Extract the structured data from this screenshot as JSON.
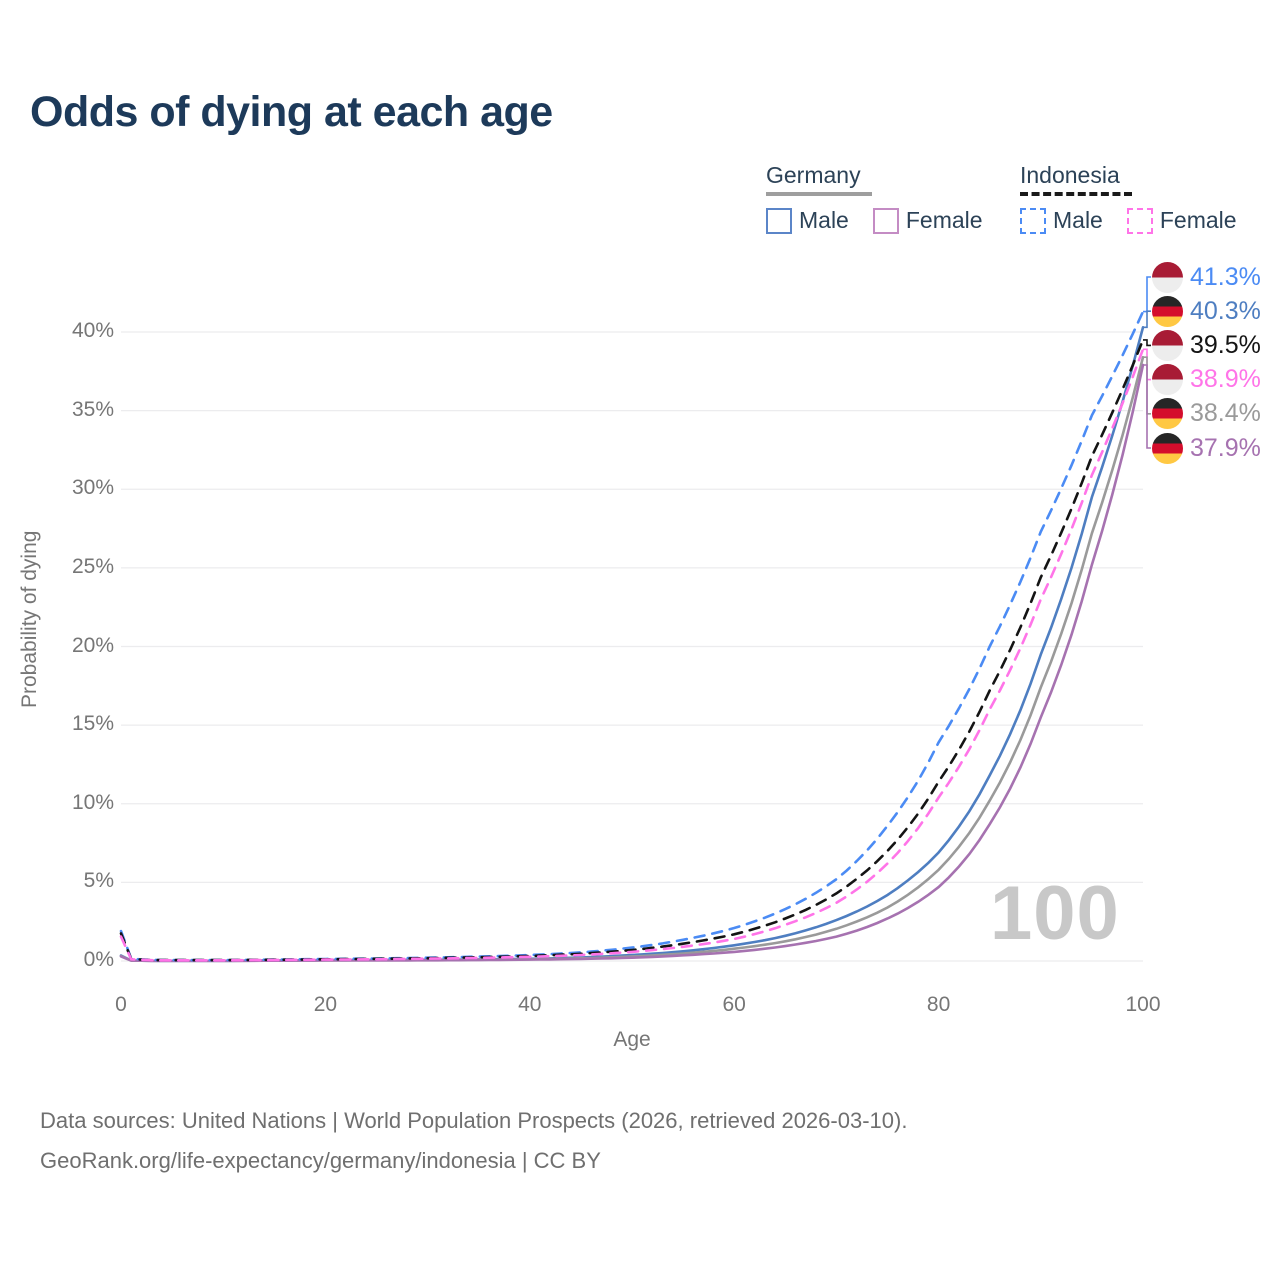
{
  "title": "Odds of dying at each age",
  "legend": {
    "groups": [
      {
        "label": "Germany",
        "line_style": "solid",
        "underline_color": "#9e9e9e",
        "items": [
          {
            "label": "Male",
            "color": "#5b85c8"
          },
          {
            "label": "Female",
            "color": "#c48cc4"
          }
        ]
      },
      {
        "label": "Indonesia",
        "line_style": "dashed",
        "underline_color": "#1a1a1a",
        "items": [
          {
            "label": "Male",
            "color": "#4b8bf4"
          },
          {
            "label": "Female",
            "color": "#ff74e8"
          }
        ]
      }
    ]
  },
  "chart_data": {
    "type": "line",
    "title": "Odds of dying at each age",
    "xlabel": "Age",
    "ylabel": "Probability of dying",
    "x_ticks": [
      0,
      20,
      40,
      60,
      80,
      100
    ],
    "y_ticks": [
      {
        "value": 0,
        "label": "0%"
      },
      {
        "value": 5,
        "label": "5%"
      },
      {
        "value": 10,
        "label": "10%"
      },
      {
        "value": 15,
        "label": "15%"
      },
      {
        "value": 20,
        "label": "20%"
      },
      {
        "value": 25,
        "label": "25%"
      },
      {
        "value": 30,
        "label": "30%"
      },
      {
        "value": 35,
        "label": "35%"
      },
      {
        "value": 40,
        "label": "40%"
      }
    ],
    "xlim": [
      0,
      100
    ],
    "ylim_percent": [
      0,
      43
    ],
    "grid": "horizontal",
    "legend_position": "top-right",
    "watermark": "100",
    "flag_colors": {
      "Germany": [
        "#262626",
        "#d40d2c",
        "#ffc843"
      ],
      "Indonesia": [
        "#a81c35",
        "#ededed"
      ]
    },
    "series": [
      {
        "id": "indonesia-male",
        "country": "Indonesia",
        "sex": "Male",
        "color": "#4b8bf4",
        "dashed": true,
        "end_label": "41.3%",
        "points": [
          [
            0,
            1.9
          ],
          [
            1,
            0.15
          ],
          [
            3,
            0.07
          ],
          [
            5,
            0.06
          ],
          [
            10,
            0.06
          ],
          [
            15,
            0.09
          ],
          [
            20,
            0.13
          ],
          [
            25,
            0.16
          ],
          [
            30,
            0.21
          ],
          [
            35,
            0.28
          ],
          [
            40,
            0.38
          ],
          [
            45,
            0.55
          ],
          [
            50,
            0.85
          ],
          [
            55,
            1.35
          ],
          [
            60,
            2.1
          ],
          [
            65,
            3.3
          ],
          [
            70,
            5.2
          ],
          [
            75,
            8.6
          ],
          [
            80,
            13.9
          ],
          [
            85,
            20.0
          ],
          [
            90,
            27.3
          ],
          [
            95,
            34.7
          ],
          [
            100,
            41.3
          ]
        ]
      },
      {
        "id": "germany-male",
        "country": "Germany",
        "sex": "Male",
        "color": "#4e7ec1",
        "dashed": false,
        "end_label": "40.3%",
        "points": [
          [
            0,
            0.35
          ],
          [
            1,
            0.03
          ],
          [
            3,
            0.015
          ],
          [
            5,
            0.012
          ],
          [
            10,
            0.012
          ],
          [
            15,
            0.03
          ],
          [
            20,
            0.06
          ],
          [
            25,
            0.065
          ],
          [
            30,
            0.08
          ],
          [
            35,
            0.1
          ],
          [
            40,
            0.14
          ],
          [
            45,
            0.22
          ],
          [
            50,
            0.38
          ],
          [
            55,
            0.62
          ],
          [
            60,
            1.0
          ],
          [
            65,
            1.6
          ],
          [
            70,
            2.6
          ],
          [
            75,
            4.2
          ],
          [
            80,
            6.9
          ],
          [
            85,
            11.8
          ],
          [
            90,
            19.5
          ],
          [
            95,
            29.5
          ],
          [
            100,
            40.3
          ]
        ]
      },
      {
        "id": "indonesia-all",
        "country": "Indonesia",
        "sex": "",
        "color": "#141414",
        "dashed": true,
        "end_label": "39.5%",
        "points": [
          [
            0,
            1.75
          ],
          [
            1,
            0.13
          ],
          [
            3,
            0.06
          ],
          [
            5,
            0.055
          ],
          [
            10,
            0.055
          ],
          [
            15,
            0.08
          ],
          [
            20,
            0.11
          ],
          [
            25,
            0.14
          ],
          [
            30,
            0.18
          ],
          [
            35,
            0.24
          ],
          [
            40,
            0.32
          ],
          [
            45,
            0.46
          ],
          [
            50,
            0.7
          ],
          [
            55,
            1.1
          ],
          [
            60,
            1.7
          ],
          [
            65,
            2.7
          ],
          [
            70,
            4.3
          ],
          [
            75,
            7.0
          ],
          [
            80,
            11.4
          ],
          [
            85,
            17.2
          ],
          [
            90,
            24.4
          ],
          [
            95,
            32.1
          ],
          [
            100,
            39.5
          ]
        ]
      },
      {
        "id": "indonesia-female",
        "country": "Indonesia",
        "sex": "Female",
        "color": "#ff74e8",
        "dashed": true,
        "end_label": "38.9%",
        "points": [
          [
            0,
            1.55
          ],
          [
            1,
            0.11
          ],
          [
            3,
            0.05
          ],
          [
            5,
            0.045
          ],
          [
            10,
            0.045
          ],
          [
            15,
            0.065
          ],
          [
            20,
            0.09
          ],
          [
            25,
            0.11
          ],
          [
            30,
            0.15
          ],
          [
            35,
            0.2
          ],
          [
            40,
            0.27
          ],
          [
            45,
            0.38
          ],
          [
            50,
            0.58
          ],
          [
            55,
            0.9
          ],
          [
            60,
            1.4
          ],
          [
            65,
            2.3
          ],
          [
            70,
            3.7
          ],
          [
            75,
            6.2
          ],
          [
            80,
            10.4
          ],
          [
            85,
            16.0
          ],
          [
            90,
            23.0
          ],
          [
            95,
            30.9
          ],
          [
            100,
            38.9
          ]
        ]
      },
      {
        "id": "germany-all",
        "country": "Germany",
        "sex": "",
        "color": "#9a9a9a",
        "dashed": false,
        "end_label": "38.4%",
        "points": [
          [
            0,
            0.32
          ],
          [
            1,
            0.027
          ],
          [
            3,
            0.013
          ],
          [
            5,
            0.011
          ],
          [
            10,
            0.011
          ],
          [
            15,
            0.025
          ],
          [
            20,
            0.045
          ],
          [
            25,
            0.05
          ],
          [
            30,
            0.06
          ],
          [
            35,
            0.08
          ],
          [
            40,
            0.11
          ],
          [
            45,
            0.17
          ],
          [
            50,
            0.29
          ],
          [
            55,
            0.48
          ],
          [
            60,
            0.78
          ],
          [
            65,
            1.25
          ],
          [
            70,
            2.05
          ],
          [
            75,
            3.4
          ],
          [
            80,
            5.8
          ],
          [
            85,
            10.2
          ],
          [
            90,
            17.4
          ],
          [
            95,
            27.2
          ],
          [
            100,
            38.4
          ]
        ]
      },
      {
        "id": "germany-female",
        "country": "Germany",
        "sex": "Female",
        "color": "#a672b0",
        "dashed": false,
        "end_label": "37.9%",
        "points": [
          [
            0,
            0.29
          ],
          [
            1,
            0.024
          ],
          [
            3,
            0.012
          ],
          [
            5,
            0.01
          ],
          [
            10,
            0.01
          ],
          [
            15,
            0.02
          ],
          [
            20,
            0.03
          ],
          [
            25,
            0.035
          ],
          [
            30,
            0.045
          ],
          [
            35,
            0.06
          ],
          [
            40,
            0.09
          ],
          [
            45,
            0.13
          ],
          [
            50,
            0.21
          ],
          [
            55,
            0.36
          ],
          [
            60,
            0.58
          ],
          [
            65,
            0.95
          ],
          [
            70,
            1.55
          ],
          [
            75,
            2.7
          ],
          [
            80,
            4.7
          ],
          [
            85,
            8.7
          ],
          [
            90,
            15.5
          ],
          [
            95,
            25.2
          ],
          [
            100,
            37.9
          ]
        ]
      }
    ]
  },
  "footer": {
    "line1": "Data sources: United Nations | World Population Prospects (2026, retrieved 2026-03-10).",
    "line2": "GeoRank.org/life-expectancy/germany/indonesia | CC BY"
  }
}
